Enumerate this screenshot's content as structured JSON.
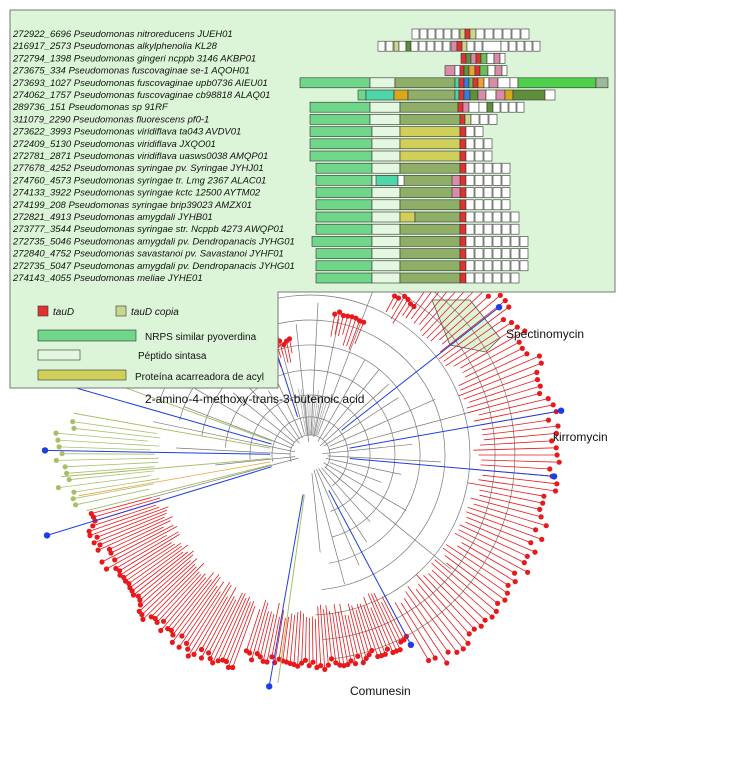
{
  "genomes": [
    "272922_6696 Pseudomonas nitroreducens JUEH01",
    "216917_2573 Pseudomonas alkylphenolia KL28",
    "272794_1398 Pseudomonas gingeri ncppb 3146 AKBP01",
    "273675_334 Pseudomonas fuscovaginae se-1 AQOH01",
    "273693_1027 Pseudomonas fuscovaginae upb0736 AIEU01",
    "274062_1757 Pseudomonas fuscovaginae cb98818 ALAQ01",
    "289736_151 Pseudomonas sp 91RF",
    "311079_2290 Pseudomonas fluorescens pf0-1",
    "273622_3993 Pseudomonas viridiflava ta043 AVDV01",
    "272409_5130 Pseudomonas viridiflava JXQO01",
    "272781_2871 Pseudomonas viridiflava uasws0038 AMQP01",
    "277678_4252 Pseudomonas syringae pv. Syringae JYHJ01",
    "274760_4573 Pseudomonas syringae tr. Lmg 2367 ALAC01",
    "274133_3922 Pseudomonas syringae kctc 12500 AYTM02",
    "274199_208 Pseudomonas syringae brip39023 AMZX01",
    "272821_4913 Pseudomonas amygdali JYHB01",
    "273777_3544 Pseudomonas syringae str. Ncppb 4273 AWQP01",
    "272735_5046 Pseudomonas amygdali pv. Dendropanacis JYHG01",
    "272840_4752 Pseudomonas savastanoi pv. Savastanoi JYHF01",
    "272735_5047 Pseudomonas amygdali pv. Dendropanacis JYHG01",
    "274143_4055 Pseudomonas meliae JYHE01"
  ],
  "legend": {
    "taud": "tauD",
    "taud_copy": "tauD copia",
    "nrps": "NRPS similar pyoverdina",
    "peptide": "Péptido sintasa",
    "acyl": "Proteína acarreadora de acyl"
  },
  "tree_labels": {
    "spectinomycin": "Spectinomycin",
    "kirromycin": "kirromycin",
    "amino_acid": "2-amino-4-methoxy-trans-3-butenoic acid",
    "comunesin": "Comunesin"
  },
  "colors": {
    "panel_bg": "#dcf5d8",
    "nrps": "#6fd68a",
    "peptide": "#e4f7e0",
    "acyl": "#cfcf5a",
    "olive": "#8fae68",
    "dark_green": "#5f8f3a",
    "taud": "#e2322f",
    "taud_copy": "#c8d88a",
    "tree_red": "#e8191c",
    "tree_blue": "#1f3ee0",
    "tree_green": "#a8bf6a",
    "tree_gray": "#9a9a9a"
  }
}
